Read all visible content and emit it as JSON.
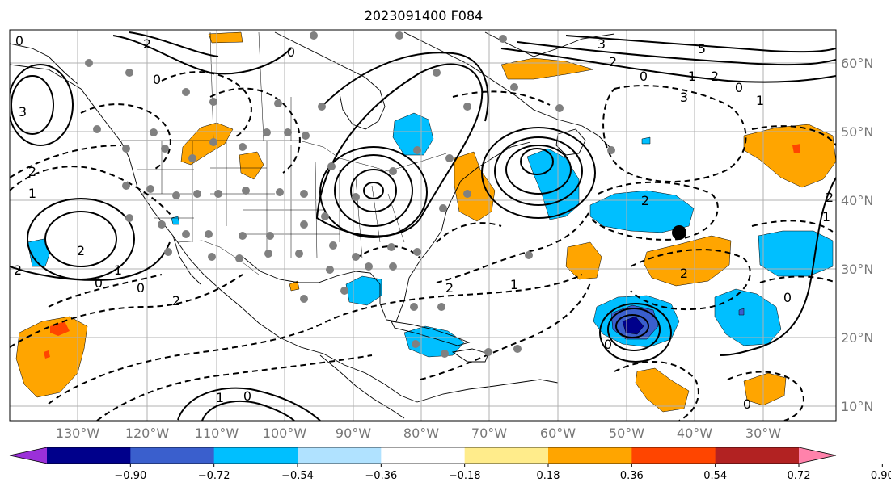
{
  "title": "2023091400 F084",
  "lon_labels": [
    "130°W",
    "120°W",
    "110°W",
    "100°W",
    "90°W",
    "80°W",
    "70°W",
    "60°W",
    "50°W",
    "40°W",
    "30°W"
  ],
  "lat_labels": [
    "60°N",
    "50°N",
    "40°N",
    "30°N",
    "20°N",
    "10°N"
  ],
  "colorbar": {
    "ticks": [
      "−0.90",
      "−0.72",
      "−0.54",
      "−0.36",
      "−0.18",
      "0.18",
      "0.36",
      "0.54",
      "0.72",
      "0.90"
    ],
    "colors": [
      "#9b30d9",
      "#00008b",
      "#3a5fcd",
      "#00bfff",
      "#b0e2ff",
      "#ffffff",
      "#ffec8b",
      "#ffa500",
      "#ff4500",
      "#b22222",
      "#ff82ab"
    ]
  },
  "contour_labels": [
    "0",
    "2",
    "0",
    "0",
    "3",
    "2",
    "5",
    "3",
    "2",
    "0",
    "1",
    "1",
    "2",
    "0",
    "1",
    "0",
    "2",
    "1",
    "2",
    "2",
    "2",
    "3",
    "1",
    "0",
    "0",
    "2",
    "1",
    "0",
    "0",
    "1",
    "0",
    "2",
    "2"
  ],
  "colors": {
    "orange": "#ffa500",
    "cyan": "#00bfff",
    "red": "#ff4500",
    "blue": "#3a5fcd",
    "navy": "#00008b",
    "grid": "#b0b0b0",
    "station": "#808080"
  }
}
